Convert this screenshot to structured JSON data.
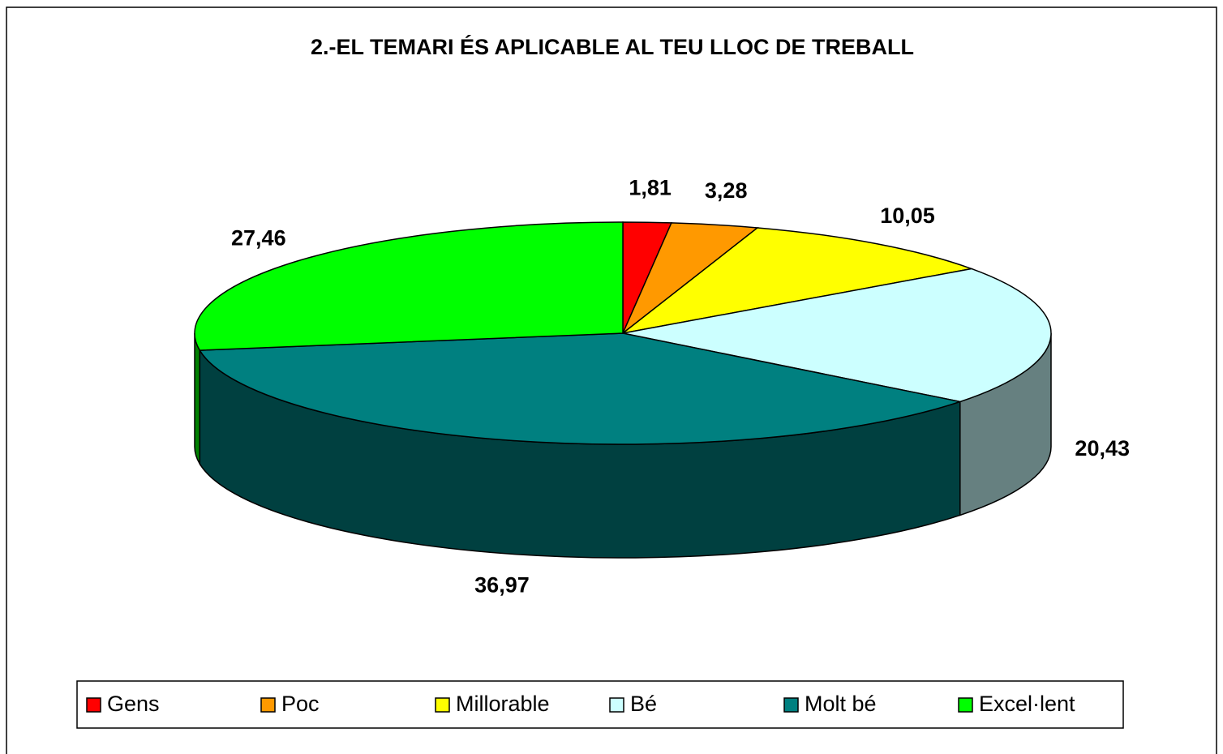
{
  "chart_data": {
    "type": "pie3d",
    "title": "2.-EL TEMARI ÉS APLICABLE AL TEU LLOC DE TREBALL",
    "categories": [
      "Gens",
      "Poc",
      "Millorable",
      "Bé",
      "Molt bé",
      "Excel·lent"
    ],
    "values": [
      1.81,
      3.28,
      10.05,
      20.43,
      36.97,
      27.46
    ],
    "value_labels": [
      "1,81",
      "3,28",
      "10,05",
      "20,43",
      "36,97",
      "27,46"
    ],
    "colors": [
      "#ff0000",
      "#ff9900",
      "#ffff00",
      "#ccffff",
      "#008080",
      "#00ff00"
    ],
    "legend": "bottom"
  }
}
